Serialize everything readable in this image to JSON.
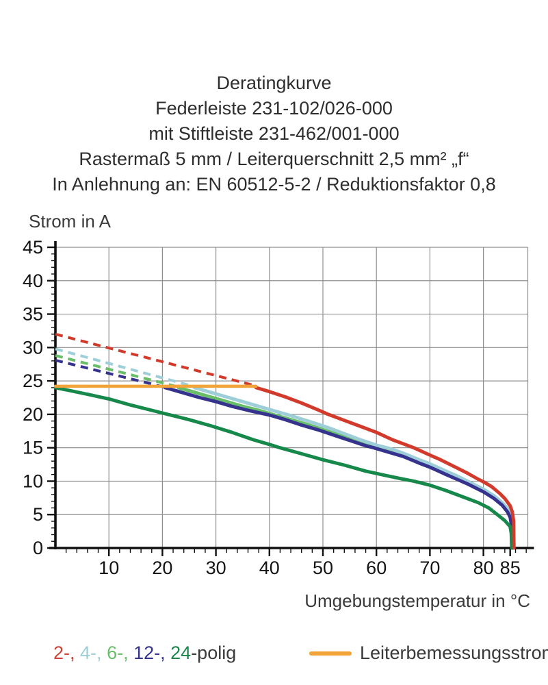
{
  "header": {
    "lines": [
      "Deratingkurve",
      "Federleiste 231-102/026-000",
      "mit Stiftleiste 231-462/001-000",
      "Rastermaß 5 mm / Leiterquerschnitt 2,5 mm² „f“",
      "In Anlehnung an: EN 60512-5-2 / Reduktionsfaktor 0,8"
    ]
  },
  "chart_data": {
    "type": "line",
    "ylabel": "Strom in A",
    "xlabel": "Umgebungstemperatur in °C",
    "xlim": [
      0,
      88.3
    ],
    "ylim": [
      0,
      45
    ],
    "x_major_ticks": [
      10,
      20,
      30,
      40,
      50,
      60,
      70,
      80,
      85
    ],
    "y_major_ticks": [
      0,
      5,
      10,
      15,
      20,
      25,
      30,
      35,
      40,
      45
    ],
    "x_minor_step": 2,
    "y_minor_step": 1,
    "grid": true,
    "grid_color": "#8f8f8f",
    "axis_color": "#101010",
    "series": [
      {
        "name": "2-polig-dashed",
        "color": "#d23b2c",
        "style": "dashed",
        "width": 4,
        "points": [
          [
            0,
            32
          ],
          [
            37.5,
            24.25
          ]
        ]
      },
      {
        "name": "4-polig-dashed",
        "color": "#9ecfd9",
        "style": "dashed",
        "width": 4,
        "points": [
          [
            0,
            29.8
          ],
          [
            26,
            24.15
          ]
        ]
      },
      {
        "name": "6-polig-dashed",
        "color": "#68bd68",
        "style": "dashed",
        "width": 4,
        "points": [
          [
            0,
            28.8
          ],
          [
            23,
            24.1
          ]
        ]
      },
      {
        "name": "12-polig-dashed",
        "color": "#35338e",
        "style": "dashed",
        "width": 4,
        "points": [
          [
            0,
            28.1
          ],
          [
            20.5,
            24.05
          ]
        ]
      },
      {
        "name": "6-polig",
        "color": "#68bd68",
        "style": "solid",
        "width": 5,
        "points": [
          [
            23,
            24
          ],
          [
            26,
            23.3
          ],
          [
            29,
            22.6
          ],
          [
            32,
            21.9
          ],
          [
            35,
            21.2
          ],
          [
            38,
            20.6
          ],
          [
            41,
            19.9
          ],
          [
            44,
            19.2
          ],
          [
            47,
            18.5
          ],
          [
            50,
            17.7
          ],
          [
            53,
            16.9
          ],
          [
            56,
            16.1
          ],
          [
            59,
            15.3
          ],
          [
            61,
            14.9
          ],
          [
            64,
            14.2
          ],
          [
            67,
            13.2
          ],
          [
            70,
            12.4
          ],
          [
            73,
            11.3
          ],
          [
            76,
            10.2
          ],
          [
            78,
            9.4
          ],
          [
            80,
            8.6
          ],
          [
            82,
            7.6
          ],
          [
            83.5,
            6.6
          ],
          [
            84.5,
            5.7
          ],
          [
            85,
            5.0
          ],
          [
            85.3,
            3.8
          ],
          [
            85.45,
            0
          ]
        ]
      },
      {
        "name": "4-polig",
        "color": "#9ecfd9",
        "style": "solid",
        "width": 5,
        "points": [
          [
            26,
            24
          ],
          [
            29,
            23.3
          ],
          [
            32,
            22.6
          ],
          [
            35,
            21.9
          ],
          [
            38,
            21.2
          ],
          [
            41,
            20.5
          ],
          [
            44,
            19.8
          ],
          [
            48,
            18.8
          ],
          [
            51,
            18.0
          ],
          [
            54,
            17.1
          ],
          [
            57,
            16.2
          ],
          [
            60,
            15.4
          ],
          [
            62.4,
            14.9
          ],
          [
            65,
            14.2
          ],
          [
            68,
            13.2
          ],
          [
            70,
            12.6
          ],
          [
            73,
            11.5
          ],
          [
            75,
            10.8
          ],
          [
            77,
            10.0
          ],
          [
            79,
            9.2
          ],
          [
            80,
            8.8
          ],
          [
            82,
            7.8
          ],
          [
            83.5,
            6.8
          ],
          [
            84.5,
            5.9
          ],
          [
            85.1,
            4.9
          ],
          [
            85.4,
            3.6
          ],
          [
            85.5,
            0
          ]
        ]
      },
      {
        "name": "12-polig",
        "color": "#35338e",
        "style": "solid",
        "width": 5,
        "points": [
          [
            20.5,
            24
          ],
          [
            24,
            23.2
          ],
          [
            27,
            22.5
          ],
          [
            30,
            21.9
          ],
          [
            33,
            21.2
          ],
          [
            36,
            20.6
          ],
          [
            40,
            19.9
          ],
          [
            43,
            19.2
          ],
          [
            46,
            18.4
          ],
          [
            49,
            17.7
          ],
          [
            52,
            16.9
          ],
          [
            55,
            16.1
          ],
          [
            58,
            15.3
          ],
          [
            59.5,
            15.0
          ],
          [
            62,
            14.4
          ],
          [
            65,
            13.7
          ],
          [
            68,
            12.7
          ],
          [
            70,
            12.1
          ],
          [
            73,
            11.0
          ],
          [
            75,
            10.3
          ],
          [
            77,
            9.6
          ],
          [
            79,
            8.8
          ],
          [
            80,
            8.4
          ],
          [
            82,
            7.4
          ],
          [
            83.5,
            6.4
          ],
          [
            84.5,
            5.4
          ],
          [
            85,
            4.6
          ],
          [
            85.3,
            3.2
          ],
          [
            85.4,
            0
          ]
        ]
      },
      {
        "name": "24-polig",
        "color": "#15884a",
        "style": "solid",
        "width": 5,
        "points": [
          [
            0,
            24
          ],
          [
            3,
            23.5
          ],
          [
            6,
            23.0
          ],
          [
            10,
            22.3
          ],
          [
            14,
            21.4
          ],
          [
            18,
            20.6
          ],
          [
            21,
            20.0
          ],
          [
            25,
            19.2
          ],
          [
            29,
            18.3
          ],
          [
            33,
            17.3
          ],
          [
            37,
            16.2
          ],
          [
            40,
            15.5
          ],
          [
            42,
            15.0
          ],
          [
            46,
            14.1
          ],
          [
            50,
            13.2
          ],
          [
            54,
            12.4
          ],
          [
            58,
            11.5
          ],
          [
            62,
            10.8
          ],
          [
            65,
            10.3
          ],
          [
            67,
            10.0
          ],
          [
            70,
            9.4
          ],
          [
            73,
            8.6
          ],
          [
            76,
            7.7
          ],
          [
            79,
            6.8
          ],
          [
            81,
            6.0
          ],
          [
            82.6,
            5.0
          ],
          [
            84,
            4.1
          ],
          [
            85,
            3.2
          ],
          [
            85.2,
            2.2
          ],
          [
            85.3,
            0
          ]
        ]
      },
      {
        "name": "2-polig",
        "color": "#d23b2c",
        "style": "solid",
        "width": 5,
        "points": [
          [
            37.5,
            24
          ],
          [
            40,
            23.4
          ],
          [
            43,
            22.6
          ],
          [
            46,
            21.7
          ],
          [
            49,
            20.7
          ],
          [
            51,
            20.0
          ],
          [
            54,
            19.1
          ],
          [
            57,
            18.2
          ],
          [
            60,
            17.3
          ],
          [
            63,
            16.2
          ],
          [
            65,
            15.6
          ],
          [
            67,
            15.0
          ],
          [
            70,
            13.9
          ],
          [
            72,
            13.2
          ],
          [
            75,
            12.0
          ],
          [
            77,
            11.2
          ],
          [
            79,
            10.3
          ],
          [
            80,
            9.9
          ],
          [
            81.5,
            9.2
          ],
          [
            83,
            8.2
          ],
          [
            84,
            7.4
          ],
          [
            85,
            6.3
          ],
          [
            85.4,
            5.4
          ],
          [
            85.65,
            4.0
          ],
          [
            85.7,
            0
          ]
        ]
      },
      {
        "name": "leiterbemessungsstrom",
        "color": "#f0a439",
        "style": "solid",
        "width": 4.5,
        "points": [
          [
            0,
            24.2
          ],
          [
            37.5,
            24.2
          ]
        ]
      }
    ]
  },
  "legend": {
    "poles": [
      {
        "text": "2-,",
        "color": "#cc4437"
      },
      {
        "text": " ",
        "color": ""
      },
      {
        "text": "4-,",
        "color": "#9ecfd9"
      },
      {
        "text": " ",
        "color": ""
      },
      {
        "text": "6-,",
        "color": "#68bd68"
      },
      {
        "text": " ",
        "color": ""
      },
      {
        "text": "12-,",
        "color": "#35338e"
      },
      {
        "text": " ",
        "color": ""
      },
      {
        "text": "24",
        "color": "#15884a"
      },
      {
        "text": "-polig",
        "color": "#3a3a3a"
      }
    ],
    "rated_label": "Leiterbemessungsstrom",
    "rated_color": "#f0a439"
  }
}
